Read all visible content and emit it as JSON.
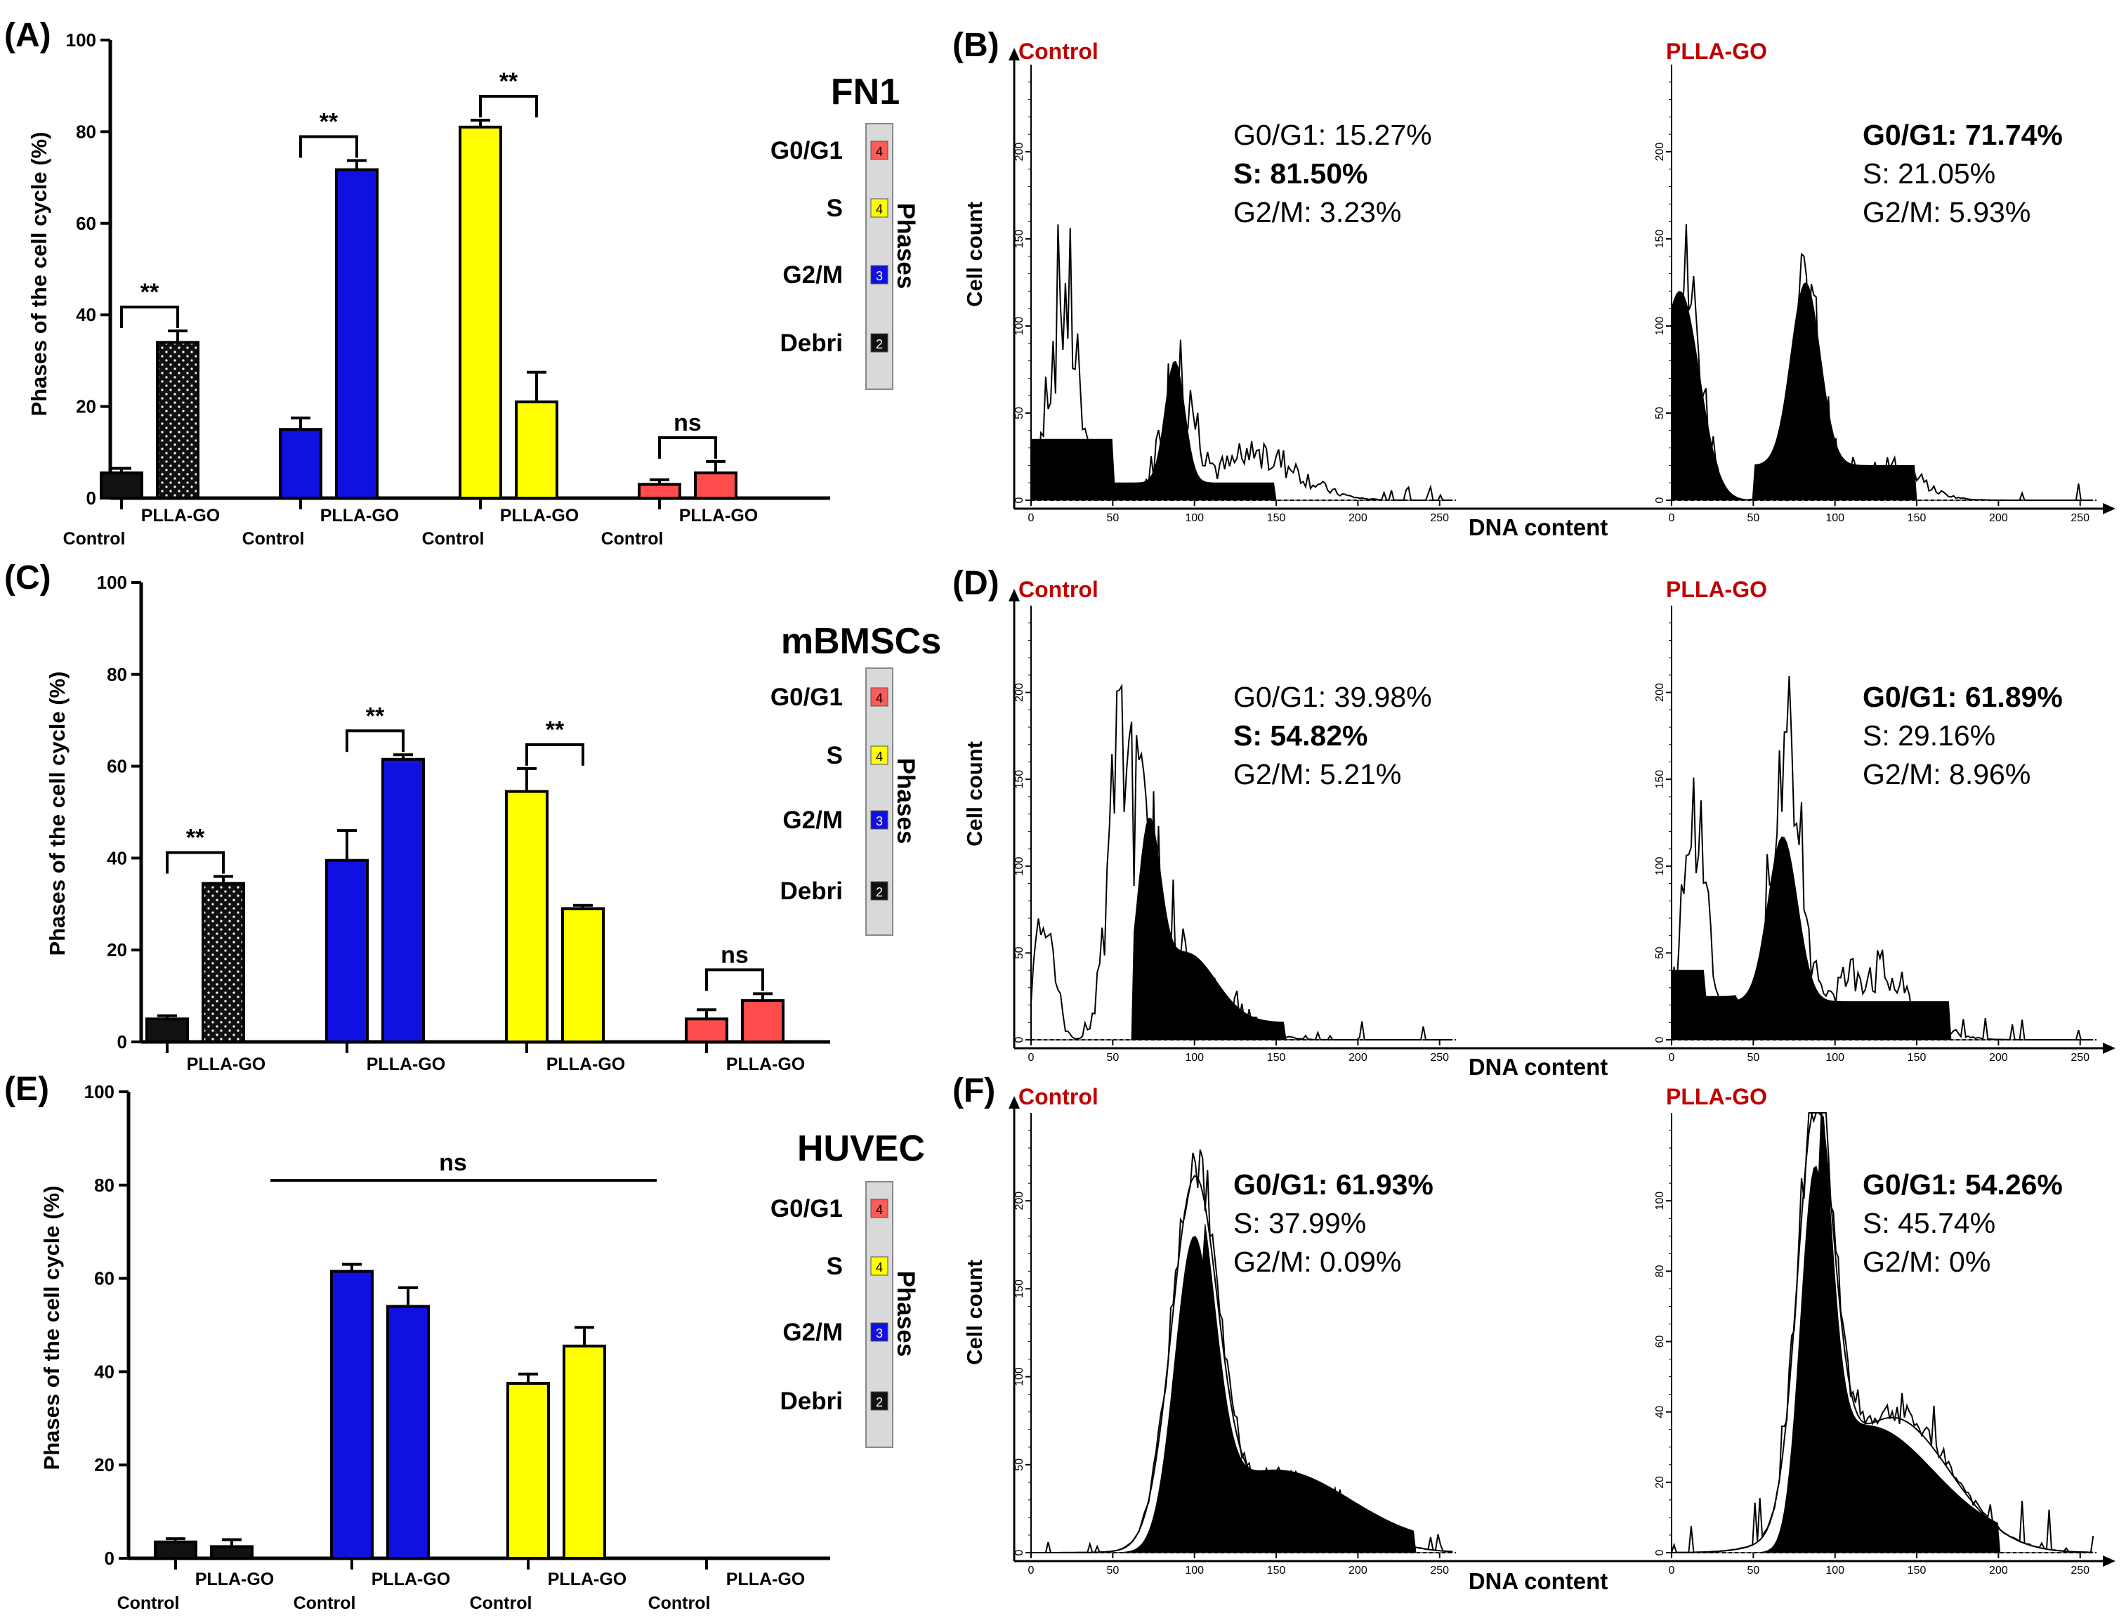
{
  "chart_data": [
    {
      "panel": "(A)",
      "type": "bar",
      "title": "FN1",
      "ylabel": "Phases of the cell cycle (%)",
      "ylim": [
        0,
        100
      ],
      "yticks": [
        "0",
        "20",
        "40",
        "60",
        "80",
        "100"
      ],
      "phases_label": "Phases",
      "legend": [
        {
          "label": "G0/G1",
          "num": "4",
          "color": "#ff5a5a"
        },
        {
          "label": "S",
          "num": "4",
          "color": "#ffff00"
        },
        {
          "label": "G2/M",
          "num": "3",
          "color": "#1010e0"
        },
        {
          "label": "Debri",
          "num": "2",
          "color": "#111111"
        }
      ],
      "groups": [
        {
          "phase": "Debri",
          "color": "#111111",
          "control": 5.5,
          "control_err": 1.0,
          "plla": 34,
          "plla_err": 2.5,
          "dotted": true,
          "sig": "**",
          "ctrl_label": "Control",
          "plla_label": "PLLA-GO"
        },
        {
          "phase": "G2/M",
          "color": "#1010e0",
          "control": 15,
          "control_err": 2.5,
          "plla": 71.7,
          "plla_err": 2.0,
          "dotted": false,
          "sig": "**",
          "ctrl_label": "Control",
          "plla_label": "PLLA-GO"
        },
        {
          "phase": "S",
          "color": "#ffff00",
          "control": 81,
          "control_err": 1.5,
          "plla": 21,
          "plla_err": 6.5,
          "dotted": false,
          "sig": "**",
          "ctrl_label": "Control",
          "plla_label": "PLLA-GO"
        },
        {
          "phase": "G0/G1",
          "color": "#ff4d4d",
          "control": 3,
          "control_err": 1.0,
          "plla": 5.5,
          "plla_err": 2.5,
          "dotted": false,
          "sig": "ns",
          "ctrl_label": "Control",
          "plla_label": "PLLA-GO"
        }
      ]
    },
    {
      "panel": "(C)",
      "type": "bar",
      "title": "mBMSCs",
      "ylabel": "Phases of the cell cycle (%)",
      "ylim": [
        0,
        100
      ],
      "yticks": [
        "0",
        "20",
        "40",
        "60",
        "80",
        "100"
      ],
      "phases_label": "Phases",
      "legend": [
        {
          "label": "G0/G1",
          "num": "4",
          "color": "#ff5a5a"
        },
        {
          "label": "S",
          "num": "4",
          "color": "#ffff00"
        },
        {
          "label": "G2/M",
          "num": "3",
          "color": "#1010e0"
        },
        {
          "label": "Debri",
          "num": "2",
          "color": "#111111"
        }
      ],
      "groups": [
        {
          "phase": "Debri",
          "color": "#111111",
          "control": 5,
          "control_err": 0.7,
          "plla": 34.5,
          "plla_err": 1.5,
          "dotted": true,
          "sig": "**",
          "ctrl_label": "",
          "plla_label": "PLLA-GO"
        },
        {
          "phase": "G2/M",
          "color": "#1010e0",
          "control": 39.5,
          "control_err": 6.5,
          "plla": 61.5,
          "plla_err": 1.0,
          "dotted": false,
          "sig": "**",
          "ctrl_label": "",
          "plla_label": "PLLA-GO"
        },
        {
          "phase": "S",
          "color": "#ffff00",
          "control": 54.5,
          "control_err": 5.0,
          "plla": 29,
          "plla_err": 0.7,
          "dotted": false,
          "sig": "**",
          "ctrl_label": "",
          "plla_label": "PLLA-GO"
        },
        {
          "phase": "G0/G1",
          "color": "#ff4d4d",
          "control": 5,
          "control_err": 2.0,
          "plla": 9,
          "plla_err": 1.5,
          "dotted": false,
          "sig": "ns",
          "ctrl_label": "",
          "plla_label": "PLLA-GO"
        }
      ]
    },
    {
      "panel": "(E)",
      "type": "bar",
      "title": "HUVEC",
      "ylabel": "Phases of the cell cycle (%)",
      "ylim": [
        0,
        100
      ],
      "yticks": [
        "0",
        "20",
        "40",
        "60",
        "80",
        "100"
      ],
      "phases_label": "Phases",
      "overall_sig": "ns",
      "legend": [
        {
          "label": "G0/G1",
          "num": "4",
          "color": "#ff5a5a"
        },
        {
          "label": "S",
          "num": "4",
          "color": "#ffff00"
        },
        {
          "label": "G2/M",
          "num": "3",
          "color": "#1010e0"
        },
        {
          "label": "Debri",
          "num": "2",
          "color": "#111111"
        }
      ],
      "groups": [
        {
          "phase": "Debri",
          "color": "#111111",
          "control": 3.5,
          "control_err": 0.7,
          "plla": 2.5,
          "plla_err": 1.5,
          "dotted": false,
          "sig": "",
          "ctrl_label": "Control",
          "plla_label": "PLLA-GO"
        },
        {
          "phase": "G2/M",
          "color": "#1010e0",
          "control": 61.5,
          "control_err": 1.5,
          "plla": 54,
          "plla_err": 4.0,
          "dotted": false,
          "sig": "",
          "ctrl_label": "Control",
          "plla_label": "PLLA-GO"
        },
        {
          "phase": "S",
          "color": "#ffff00",
          "control": 37.5,
          "control_err": 2.0,
          "plla": 45.5,
          "plla_err": 4.0,
          "dotted": false,
          "sig": "",
          "ctrl_label": "Control",
          "plla_label": "PLLA-GO"
        },
        {
          "phase": "G0/G1",
          "color": "#ff4d4d",
          "control": 0,
          "control_err": 0,
          "plla": 0,
          "plla_err": 0,
          "dotted": false,
          "sig": "",
          "ctrl_label": "Control",
          "plla_label": "PLLA-GO"
        }
      ]
    },
    {
      "panel": "(B)",
      "type": "histogram",
      "xlabel": "DNA content",
      "ylabel": "Cell count",
      "xticks": [
        "0",
        "50",
        "100",
        "150",
        "200",
        "250"
      ],
      "plots": [
        {
          "name": "Control",
          "yticks": [
            "0",
            "50",
            "100",
            "150",
            "200"
          ],
          "ymax": 250,
          "stats": [
            {
              "text": "G0/G1: 15.27%",
              "bold": false
            },
            {
              "text": "S: 81.50%",
              "bold": true
            },
            {
              "text": "G2/M: 3.23%",
              "bold": false
            }
          ]
        },
        {
          "name": "PLLA-GO",
          "yticks": [
            "0",
            "50",
            "100",
            "150",
            "200"
          ],
          "ymax": 250,
          "stats": [
            {
              "text": "G0/G1: 71.74%",
              "bold": true
            },
            {
              "text": "S: 21.05%",
              "bold": false
            },
            {
              "text": "G2/M: 5.93%",
              "bold": false
            }
          ]
        }
      ]
    },
    {
      "panel": "(D)",
      "type": "histogram",
      "xlabel": "DNA content",
      "ylabel": "Cell count",
      "xticks": [
        "0",
        "50",
        "100",
        "150",
        "200",
        "250"
      ],
      "plots": [
        {
          "name": "Control",
          "yticks": [
            "0",
            "50",
            "100",
            "150",
            "200"
          ],
          "ymax": 250,
          "stats": [
            {
              "text": "G0/G1: 39.98%",
              "bold": false
            },
            {
              "text": "S: 54.82%",
              "bold": true
            },
            {
              "text": "G2/M: 5.21%",
              "bold": false
            }
          ]
        },
        {
          "name": "PLLA-GO",
          "yticks": [
            "0",
            "50",
            "100",
            "150",
            "200"
          ],
          "ymax": 250,
          "stats": [
            {
              "text": "G0/G1: 61.89%",
              "bold": true
            },
            {
              "text": "S: 29.16%",
              "bold": false
            },
            {
              "text": "G2/M: 8.96%",
              "bold": false
            }
          ]
        }
      ]
    },
    {
      "panel": "(F)",
      "type": "histogram",
      "xlabel": "DNA content",
      "ylabel": "Cell count",
      "xticks": [
        "0",
        "50",
        "100",
        "150",
        "200",
        "250"
      ],
      "plots": [
        {
          "name": "Control",
          "yticks": [
            "0",
            "50",
            "100",
            "150",
            "200"
          ],
          "ymax": 250,
          "stats": [
            {
              "text": "G0/G1: 61.93%",
              "bold": true
            },
            {
              "text": "S: 37.99%",
              "bold": false
            },
            {
              "text": "G2/M: 0.09%",
              "bold": false
            }
          ]
        },
        {
          "name": "PLLA-GO",
          "yticks": [
            "0",
            "20",
            "40",
            "60",
            "80",
            "100"
          ],
          "ymax": 125,
          "stats": [
            {
              "text": "G0/G1: 54.26%",
              "bold": true
            },
            {
              "text": "S: 45.74%",
              "bold": false
            },
            {
              "text": "G2/M: 0%",
              "bold": false
            }
          ]
        }
      ]
    }
  ],
  "colors": {
    "label_red": "#c00000",
    "legend_bar": "#d9d9d9"
  }
}
